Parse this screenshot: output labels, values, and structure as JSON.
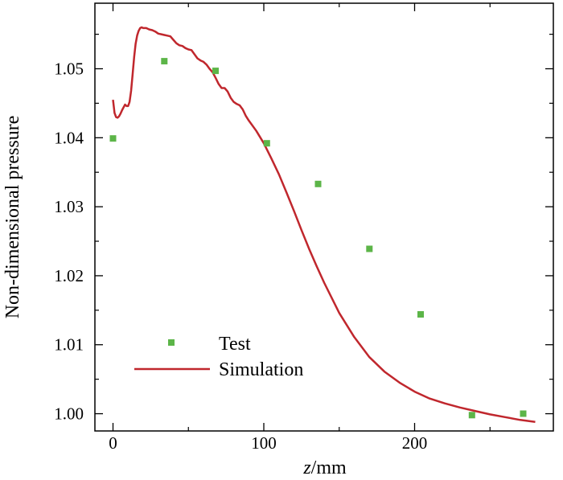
{
  "chart_data": {
    "type": "line",
    "title": "",
    "xlabel_italic": "z",
    "xlabel_rest": "/mm",
    "ylabel": "Non-dimensional pressure",
    "xlim": [
      -12,
      292
    ],
    "ylim": [
      0.9975,
      1.0595
    ],
    "xticks": [
      0,
      100,
      200
    ],
    "xtick_labels": [
      "0",
      "100",
      "200"
    ],
    "xminor": [
      50,
      150,
      250
    ],
    "yticks": [
      1.0,
      1.01,
      1.02,
      1.03,
      1.04,
      1.05
    ],
    "ytick_labels": [
      "1.00",
      "1.01",
      "1.02",
      "1.03",
      "1.04",
      "1.05"
    ],
    "yminor": [
      1.005,
      1.015,
      1.025,
      1.035,
      1.045,
      1.055
    ],
    "grid": false,
    "legend_position": "bottom-left",
    "series": [
      {
        "name": "Test",
        "kind": "scatter",
        "color": "#5cb548",
        "x": [
          0,
          34,
          68,
          102,
          136,
          170,
          204,
          238,
          272
        ],
        "y": [
          1.0399,
          1.0511,
          1.0497,
          1.0392,
          1.0333,
          1.0239,
          1.0144,
          0.9998,
          1.0
        ]
      },
      {
        "name": "Simulation",
        "kind": "line",
        "color": "#c0272d",
        "x": [
          0,
          1,
          2,
          3,
          4,
          5,
          6,
          7,
          8,
          9,
          10,
          11,
          12,
          13,
          14,
          15,
          16,
          17,
          18,
          19,
          20,
          22,
          24,
          26,
          28,
          30,
          32,
          34,
          36,
          38,
          40,
          42,
          44,
          46,
          48,
          50,
          52,
          54,
          56,
          58,
          60,
          62,
          64,
          66,
          68,
          70,
          72,
          74,
          76,
          78,
          80,
          82,
          84,
          86,
          88,
          90,
          95,
          100,
          105,
          110,
          115,
          120,
          125,
          130,
          135,
          140,
          150,
          160,
          170,
          180,
          190,
          200,
          210,
          220,
          230,
          240,
          250,
          260,
          270,
          280
        ],
        "y": [
          1.0455,
          1.0436,
          1.043,
          1.0429,
          1.0431,
          1.0435,
          1.044,
          1.0444,
          1.0448,
          1.0446,
          1.0446,
          1.0452,
          1.0468,
          1.0492,
          1.0517,
          1.0536,
          1.0548,
          1.0555,
          1.0559,
          1.056,
          1.0559,
          1.0559,
          1.0557,
          1.0556,
          1.0554,
          1.0551,
          1.055,
          1.0549,
          1.0548,
          1.0547,
          1.0542,
          1.0537,
          1.0534,
          1.0533,
          1.053,
          1.0528,
          1.0527,
          1.0521,
          1.0515,
          1.0512,
          1.051,
          1.0506,
          1.05,
          1.0495,
          1.0487,
          1.0478,
          1.0472,
          1.0472,
          1.0467,
          1.0458,
          1.0452,
          1.0449,
          1.0447,
          1.0441,
          1.0432,
          1.0425,
          1.041,
          1.0392,
          1.037,
          1.0347,
          1.0321,
          1.0294,
          1.0266,
          1.0239,
          1.0214,
          1.019,
          1.0146,
          1.0111,
          1.0082,
          1.0061,
          1.0045,
          1.0032,
          1.0022,
          1.0015,
          1.0009,
          1.0004,
          0.9999,
          0.9995,
          0.9991,
          0.9988
        ]
      }
    ]
  }
}
